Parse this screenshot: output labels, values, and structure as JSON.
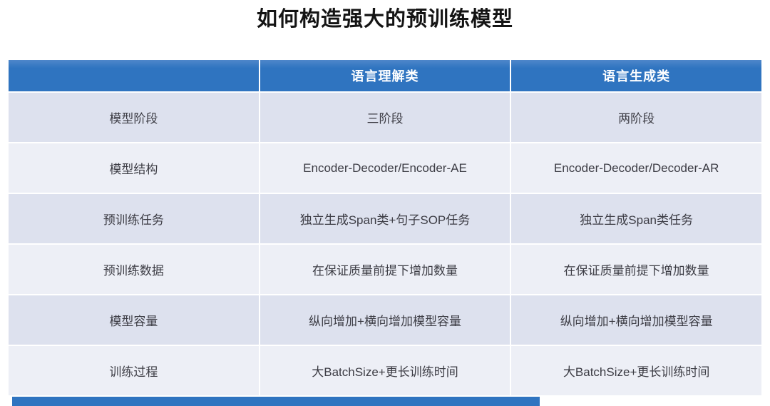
{
  "page": {
    "title": "如何构造强大的预训练模型"
  },
  "table": {
    "columns": [
      "",
      "语言理解类",
      "语言生成类"
    ],
    "rows": [
      {
        "label": "模型阶段",
        "understanding": "三阶段",
        "generation": "两阶段"
      },
      {
        "label": "模型结构",
        "understanding": "Encoder-Decoder/Encoder-AE",
        "generation": "Encoder-Decoder/Decoder-AR"
      },
      {
        "label": "预训练任务",
        "understanding": "独立生成Span类+句子SOP任务",
        "generation": "独立生成Span类任务"
      },
      {
        "label": "预训练数据",
        "understanding": "在保证质量前提下增加数量",
        "generation": "在保证质量前提下增加数量"
      },
      {
        "label": "模型容量",
        "understanding": "纵向增加+横向增加模型容量",
        "generation": "纵向增加+横向增加模型容量"
      },
      {
        "label": "训练过程",
        "understanding": "大BatchSize+更长训练时间",
        "generation": "大BatchSize+更长训练时间"
      }
    ]
  },
  "colors": {
    "header_bg": "#2f74c0",
    "header_bg_top": "#4e87ca",
    "row_alt_dark": "#dde1ee",
    "row_alt_light": "#edeff6",
    "header_text": "#fdfeff",
    "cell_text": "#3c3c44",
    "title_text": "#141414",
    "bottom_bar": "#2f74c0"
  }
}
